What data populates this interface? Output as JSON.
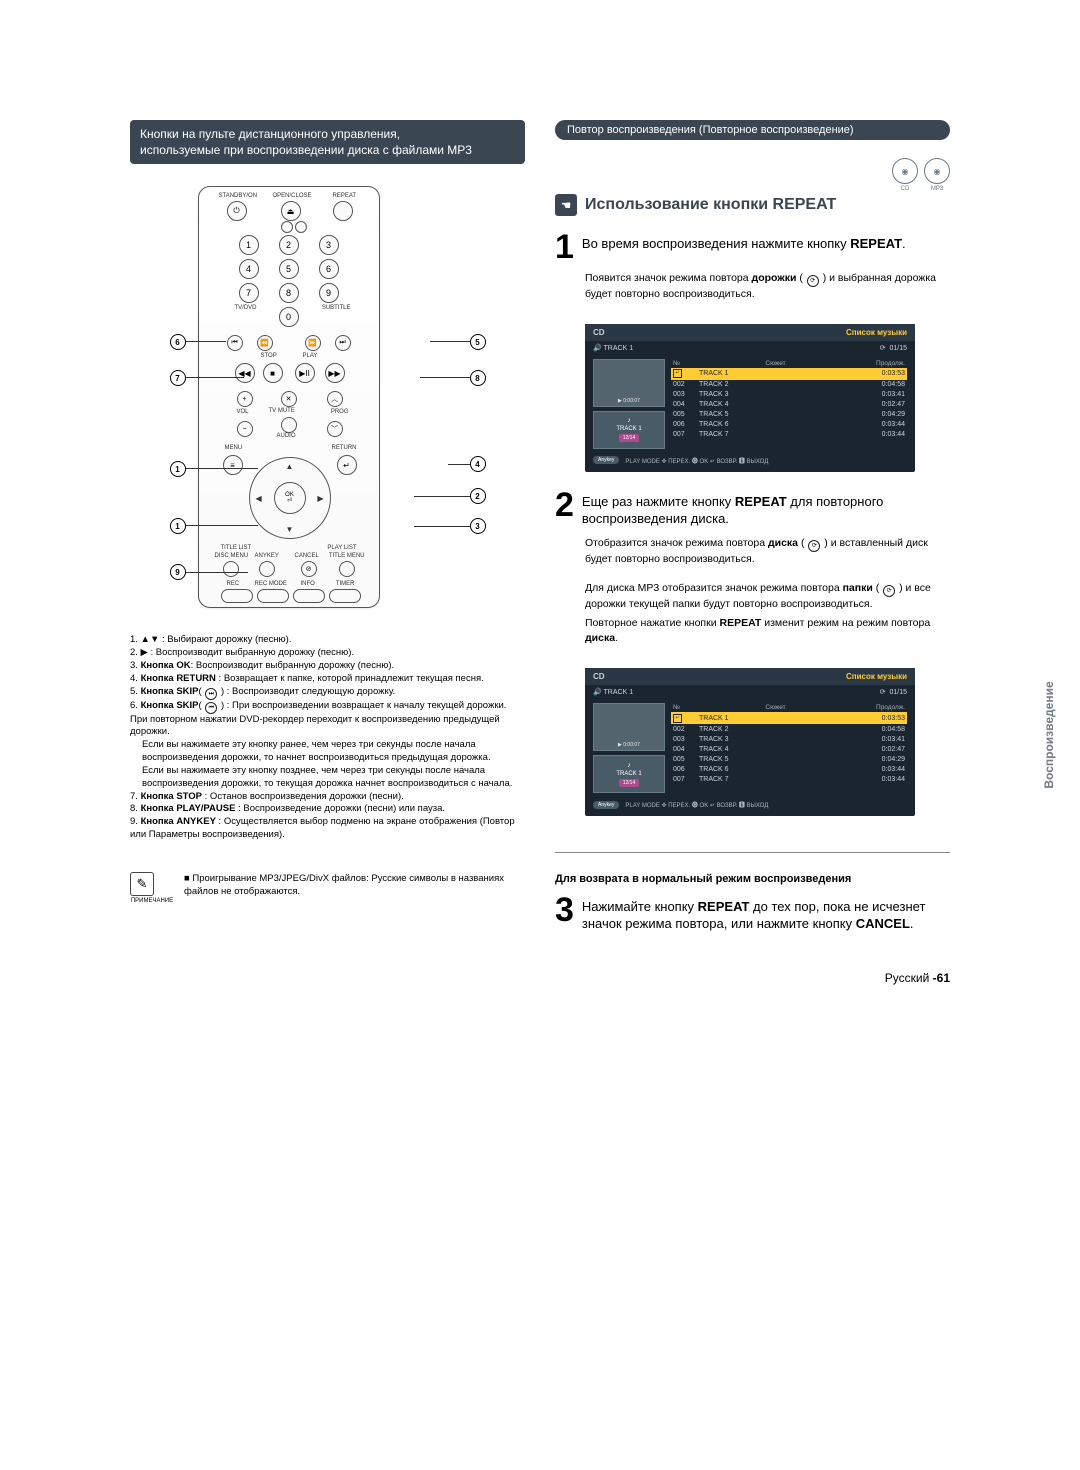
{
  "left": {
    "header_line1": "Кнопки на пульте дистанционного управления,",
    "header_line2": "используемые при воспроизведении диска с файлами MP3",
    "remote_labels": {
      "standby": "STANDBY/ON",
      "openclose": "OPEN/CLOSE",
      "repeat": "REPEAT",
      "tvdvd": "TV/DVD",
      "subtitle": "SUBTITLE",
      "stop": "STOP",
      "play": "PLAY",
      "vol": "VOL",
      "tvmute": "TV MUTE",
      "prog": "PROG",
      "audio": "AUDIO",
      "menu": "MENU",
      "return": "RETURN",
      "ok": "OK",
      "titlelist": "TITLE LIST",
      "playlist": "PLAY LIST",
      "discmenu": "DISC MENU",
      "anykey": "ANYKEY",
      "cancel": "CANCEL",
      "titlemenu": "TITLE MENU",
      "rec": "REC",
      "recmode": "REC MODE",
      "info": "INFO",
      "timer": "TIMER"
    },
    "notes": [
      "1. ▲▼ : Выбирают дорожку (песню).",
      "2. ▶ : Воспроизводит выбранную дорожку (песню).",
      "3. Кнопка OK: Воспроизводит выбранную дорожку (песню).",
      "4. Кнопка RETURN : Возвращает к папке, которой принадлежит текущая песня.",
      "5. Кнопка SKIP( ⏭ ) : Воспроизводит следующую дорожку.",
      "6. Кнопка SKIP( ⏮ ) : При воспроизведении возвращает к началу текущей дорожки. При повторном нажатии DVD-рекордер переходит к воспроизведению предыдущей дорожки.",
      "Если вы нажимаете эту кнопку ранее, чем через три секунды после начала воспроизведения дорожки, то начнет воспроизводиться предыдущая дорожка.",
      "Если вы нажимаете эту кнопку позднее, чем через три секунды после начала воспроизведения дорожки, то текущая дорожка начнет воспроизводиться с начала.",
      "7. Кнопка STOP : Останов воспроизведения дорожки (песни).",
      "8. Кнопка PLAY/PAUSE : Воспроизведение дорожки (песни) или пауза.",
      "9. Кнопка ANYKEY : Осуществляется выбор подменю на экране отображения (Повтор или Параметры воспроизведения)."
    ],
    "footnote_label": "ПРИМЕЧАНИЕ",
    "footnote_bullet": "■",
    "footnote_text": "Проигрывание MP3/JPEG/DivX файлов: Русские символы в названиях файлов не отображаются."
  },
  "right": {
    "pill": "Повтор воспроизведения (Повторное воспроизведение)",
    "disc1": "CD",
    "disc2": "MP3",
    "feature_title": "Использование кнопки REPEAT",
    "step1_main": "Во время воспроизведения нажмите кнопку REPEAT.",
    "step1_sub": "Появится значок режима повтора дорожки ( ⟳ ) и выбранная дорожка будет повторно воспроизводиться.",
    "step2_main": "Еще раз нажмите кнопку REPEAT для повторного воспроизведения диска.",
    "step2_sub1": "Отобразится значок режима повтора диска ( ⟳ ) и вставленный диск будет повторно воспроизводиться.",
    "step2_sub2": "Для диска MP3 отобразится значок режима повтора папки ( ⟳ ) и все дорожки текущей папки будут повторно воспроизводиться.",
    "step2_sub3": "Повторное нажатие кнопки REPEAT изменит режим на режим повтора диска.",
    "return_heading": "Для возврата в нормальный режим воспроизведения",
    "step3_main": "Нажимайте кнопку REPEAT до тех пор, пока не исчезнет значок режима повтора, или нажмите кнопку CANCEL.",
    "screenshot": {
      "hdr_left": "CD",
      "hdr_right": "Список музыки",
      "sub_left": "🔊 TRACK 1",
      "sub_right_icon": "⟳",
      "sub_right": "01/15",
      "col_no": "№",
      "col_title": "Сюжет",
      "col_len": "Продолж.",
      "time": "▶ 0:00:07",
      "cur": "TRACK 1",
      "badge": "12/14",
      "tracks": [
        {
          "n": "",
          "ico": "↵",
          "t": "TRACK 1",
          "d": "0:03:53",
          "sel": true
        },
        {
          "n": "002",
          "ico": "",
          "t": "TRACK 2",
          "d": "0:04:58"
        },
        {
          "n": "003",
          "ico": "",
          "t": "TRACK 3",
          "d": "0:03:41"
        },
        {
          "n": "004",
          "ico": "",
          "t": "TRACK 4",
          "d": "0:02:47"
        },
        {
          "n": "005",
          "ico": "",
          "t": "TRACK 5",
          "d": "0:04:29"
        },
        {
          "n": "006",
          "ico": "",
          "t": "TRACK 6",
          "d": "0:03:44"
        },
        {
          "n": "007",
          "ico": "",
          "t": "TRACK 7",
          "d": "0:03:44"
        }
      ],
      "foot_pill": "Anykey",
      "foot": "PLAY MODE ✜ ПЕРЕХ. 🅞 OK ↵ ВОЗВР. 🅴 ВЫХОД"
    }
  },
  "side_label": "Воспроизведение",
  "footer_lang": "Русский",
  "footer_page": "-61"
}
